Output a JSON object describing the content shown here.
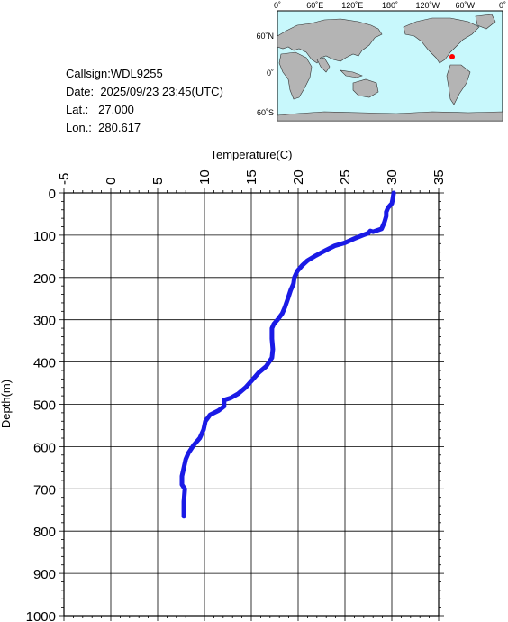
{
  "station": {
    "callsign_label": "Callsign:",
    "callsign": "WDL9255",
    "date_label": "Date:",
    "date": "2025/09/23 23:45(UTC)",
    "lat_label": "Lat.:",
    "lat": "27.000",
    "lon_label": "Lon.:",
    "lon": "280.617"
  },
  "map": {
    "lon_labels": [
      "0˚",
      "60˚E",
      "120˚E",
      "180˚",
      "120˚W",
      "60˚W",
      "0˚"
    ],
    "lat_labels": [
      "60˚N",
      "0˚",
      "60˚S"
    ],
    "ocean_color": "#c8f8fc",
    "land_color": "#b4b4b4",
    "marker_color": "#ff0000"
  },
  "chart_data": {
    "type": "line",
    "xlabel": "Temperature(C)",
    "ylabel": "Depth(m)",
    "xlim": [
      -5,
      35
    ],
    "ylim": [
      1000,
      0
    ],
    "x_ticks": [
      "-5",
      "0",
      "5",
      "10",
      "15",
      "20",
      "25",
      "30",
      "35"
    ],
    "y_ticks": [
      "0",
      "100",
      "200",
      "300",
      "400",
      "500",
      "600",
      "700",
      "800",
      "900",
      "1000"
    ],
    "grid": true,
    "line_color": "#1a1ae6",
    "series": [
      {
        "points": [
          [
            30.2,
            0
          ],
          [
            30.1,
            15
          ],
          [
            30.0,
            25
          ],
          [
            29.6,
            35
          ],
          [
            29.4,
            45
          ],
          [
            29.4,
            55
          ],
          [
            29.2,
            70
          ],
          [
            28.9,
            85
          ],
          [
            28.0,
            92
          ],
          [
            27.7,
            90
          ],
          [
            27.5,
            95
          ],
          [
            26.9,
            100
          ],
          [
            26.0,
            108
          ],
          [
            25.0,
            118
          ],
          [
            23.9,
            125
          ],
          [
            23.0,
            135
          ],
          [
            21.9,
            148
          ],
          [
            21.0,
            160
          ],
          [
            20.4,
            172
          ],
          [
            19.9,
            185
          ],
          [
            19.6,
            200
          ],
          [
            19.5,
            215
          ],
          [
            19.2,
            230
          ],
          [
            18.9,
            250
          ],
          [
            18.6,
            270
          ],
          [
            18.3,
            285
          ],
          [
            17.8,
            300
          ],
          [
            17.4,
            310
          ],
          [
            17.2,
            320
          ],
          [
            17.2,
            345
          ],
          [
            17.3,
            370
          ],
          [
            17.2,
            390
          ],
          [
            16.6,
            410
          ],
          [
            15.8,
            425
          ],
          [
            15.2,
            440
          ],
          [
            14.4,
            460
          ],
          [
            13.6,
            475
          ],
          [
            12.8,
            485
          ],
          [
            12.1,
            490
          ],
          [
            12.1,
            505
          ],
          [
            11.5,
            515
          ],
          [
            10.6,
            525
          ],
          [
            10.1,
            540
          ],
          [
            9.9,
            560
          ],
          [
            9.5,
            580
          ],
          [
            8.9,
            595
          ],
          [
            8.6,
            605
          ],
          [
            8.3,
            615
          ],
          [
            8.0,
            630
          ],
          [
            7.8,
            650
          ],
          [
            7.6,
            670
          ],
          [
            7.6,
            690
          ],
          [
            7.9,
            700
          ],
          [
            7.8,
            730
          ],
          [
            7.8,
            765
          ]
        ]
      }
    ]
  }
}
